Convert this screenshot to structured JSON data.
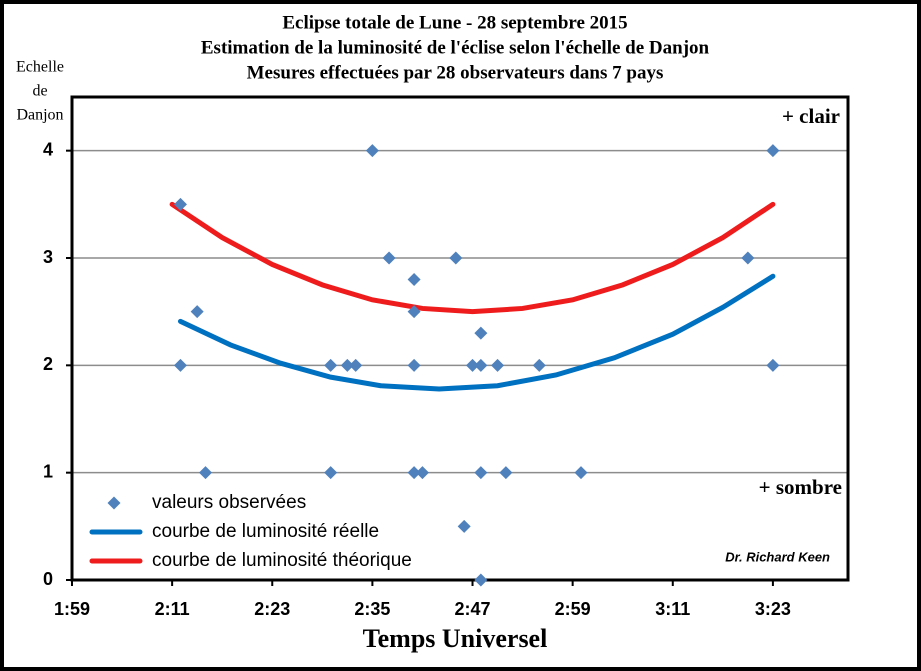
{
  "chart_data": {
    "type": "scatter",
    "title": [
      "Eclipse totale de Lune - 28 septembre 2015",
      "Estimation de la luminosité de l'éclise selon l'échelle de Danjon",
      "Mesures effectuées par 28 observateurs dans 7 pays"
    ],
    "y_label": [
      "Echelle",
      "de",
      "Danjon"
    ],
    "x_label": "Temps Universel",
    "annotations": [
      "+ clair",
      "+ sombre",
      "Dr. Richard Keen"
    ],
    "xlim": [
      119,
      212
    ],
    "xticks": [
      {
        "value": 119,
        "label": "1:59"
      },
      {
        "value": 131,
        "label": "2:11"
      },
      {
        "value": 143,
        "label": "2:23"
      },
      {
        "value": 155,
        "label": "2:35"
      },
      {
        "value": 167,
        "label": "2:47"
      },
      {
        "value": 179,
        "label": "2:59"
      },
      {
        "value": 191,
        "label": "3:11"
      },
      {
        "value": 203,
        "label": "3:23"
      }
    ],
    "ylim": [
      0,
      4.5
    ],
    "yticks": [
      0,
      1,
      2,
      3,
      4
    ],
    "grid": true,
    "legend": "bottom-left",
    "series": [
      {
        "name": "valeurs observées",
        "color": "#4f81bd",
        "style": "markers",
        "x": [
          132,
          132,
          134,
          135,
          150,
          150,
          152,
          153,
          155,
          157,
          160,
          160,
          160,
          160,
          161,
          165,
          166,
          167,
          168,
          168,
          168,
          168,
          170,
          171,
          175,
          180,
          200,
          203,
          203
        ],
        "values": [
          3.5,
          2,
          2.5,
          1,
          2,
          1,
          2,
          2,
          4,
          3,
          2.8,
          2.5,
          2,
          1,
          1,
          3,
          0.5,
          2,
          2.3,
          2,
          1,
          0,
          2,
          1,
          2,
          1,
          3,
          4,
          2
        ]
      },
      {
        "name": "courbe de luminosité réelle",
        "color": "#0070c0",
        "style": "line",
        "x": [
          132,
          138,
          144,
          150,
          156,
          163,
          170,
          177,
          184,
          191,
          197,
          203
        ],
        "values": [
          2.41,
          2.19,
          2.02,
          1.89,
          1.81,
          1.78,
          1.81,
          1.91,
          2.07,
          2.29,
          2.54,
          2.83
        ]
      },
      {
        "name": "courbe de luminosité théorique",
        "color": "#ee1c1c",
        "style": "line",
        "x": [
          131,
          137,
          143,
          149,
          155,
          161,
          167,
          173,
          179,
          185,
          191,
          197,
          203
        ],
        "values": [
          3.5,
          3.19,
          2.94,
          2.75,
          2.61,
          2.53,
          2.5,
          2.53,
          2.61,
          2.75,
          2.94,
          3.19,
          3.5
        ]
      }
    ]
  }
}
